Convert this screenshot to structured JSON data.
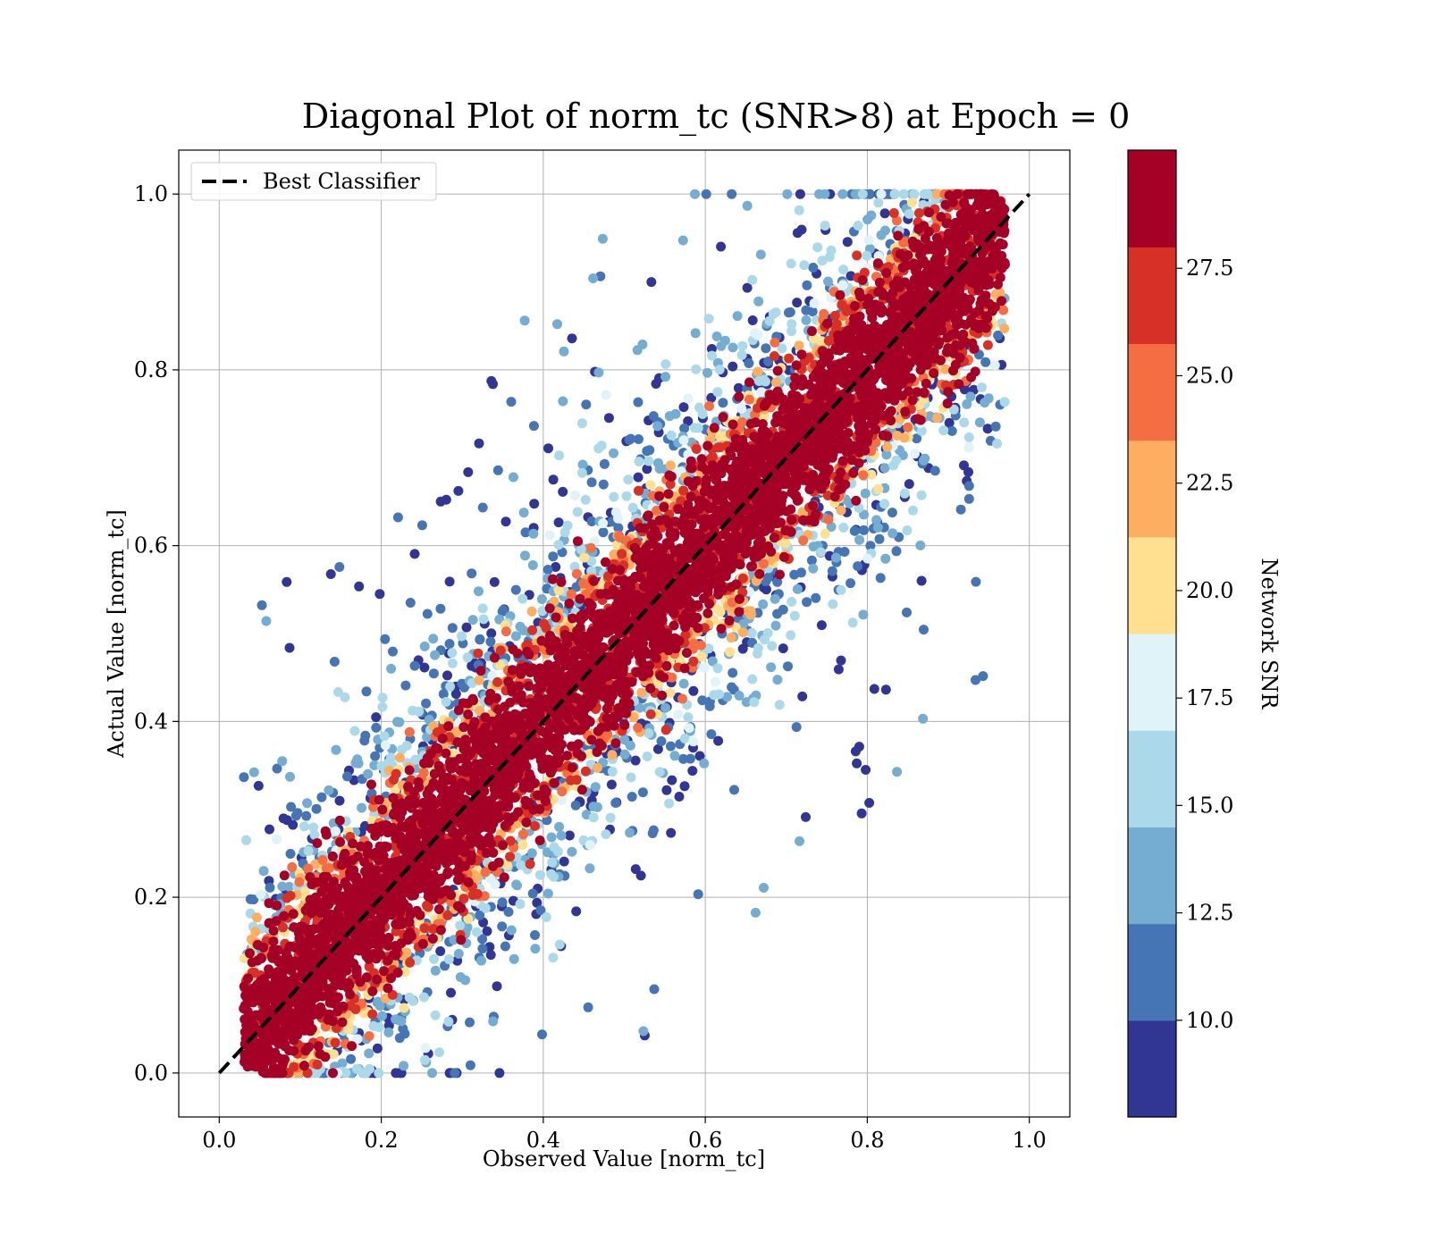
{
  "chart_data": {
    "type": "scatter",
    "title": "Diagonal Plot of norm_tc (SNR>8) at Epoch = 0",
    "xlabel": "Observed Value [norm_tc]",
    "ylabel": "Actual Value [norm_tc]",
    "xlim": [
      -0.05,
      1.05
    ],
    "ylim": [
      -0.05,
      1.05
    ],
    "xticks": [
      "0.0",
      "0.2",
      "0.4",
      "0.6",
      "0.8",
      "1.0"
    ],
    "yticks": [
      "0.0",
      "0.2",
      "0.4",
      "0.6",
      "0.8",
      "1.0"
    ],
    "grid": true,
    "legend": {
      "position": "upper left",
      "entries": [
        "Best Classifier"
      ]
    },
    "reference_line": {
      "label": "Best Classifier",
      "x": [
        0,
        1
      ],
      "y": [
        0,
        1
      ],
      "style": "dashed",
      "color": "#000000"
    },
    "colorbar": {
      "label": "Network SNR",
      "range": [
        7.75,
        30.25
      ],
      "ticks": [
        "10.0",
        "12.5",
        "15.0",
        "17.5",
        "20.0",
        "22.5",
        "25.0",
        "27.5"
      ],
      "colors": [
        "#313695",
        "#4575b4",
        "#74add1",
        "#abd9e9",
        "#e0f3f8",
        "#fee090",
        "#fdae61",
        "#f46d43",
        "#d73027",
        "#a50026"
      ]
    },
    "x_range_observed": [
      0.03,
      0.97
    ],
    "y_range_actual": [
      0.0,
      1.0
    ],
    "description_points": "dense band of points along y = x, width about 0.15; high SNR (dark red) at the center, low SNR (blue) at the edges and as outliers"
  }
}
